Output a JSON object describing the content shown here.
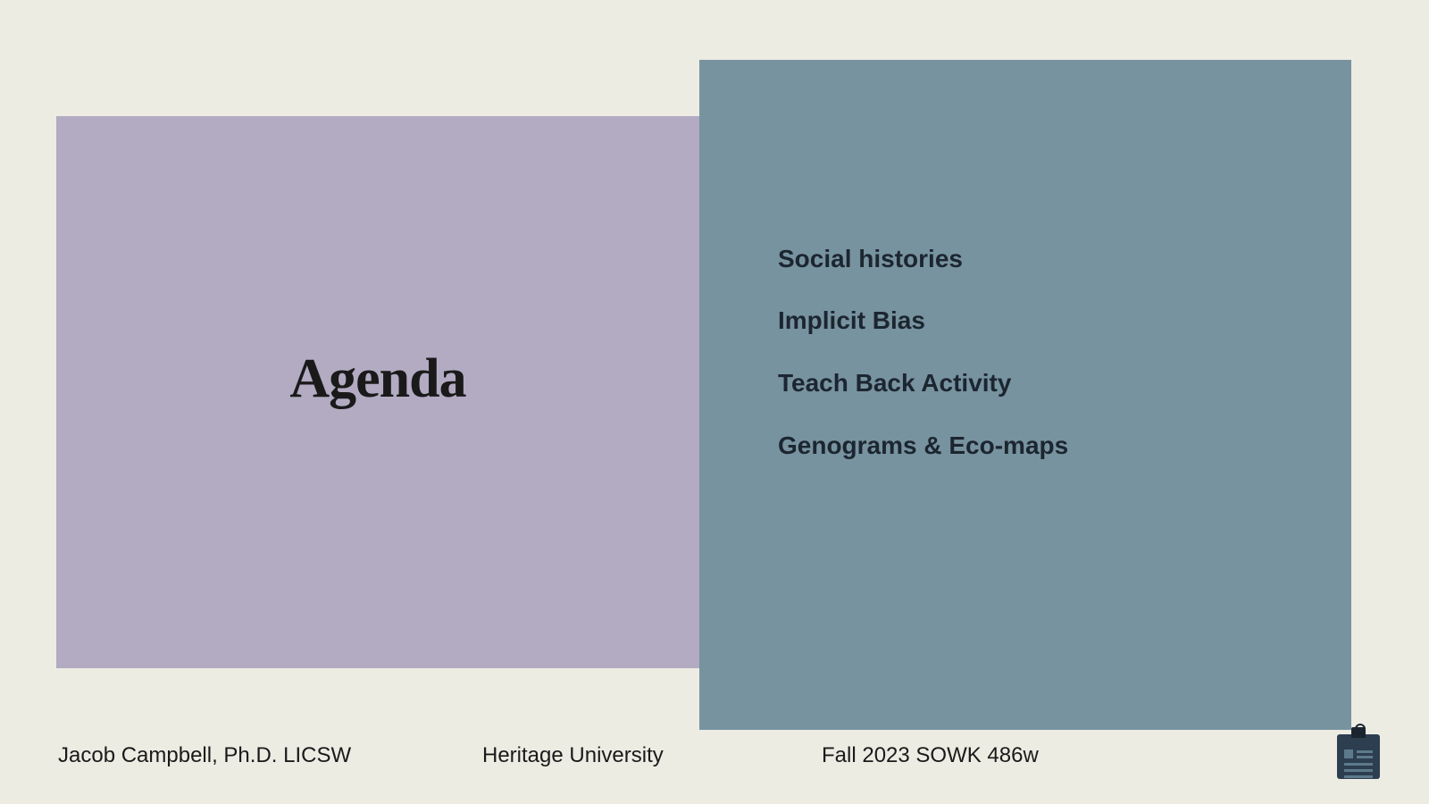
{
  "slide": {
    "title": "Agenda",
    "background_color": "#ecece3",
    "left_panel": {
      "color": "#b2abc2",
      "title_fontsize": 62,
      "title_font": "serif"
    },
    "right_panel": {
      "color": "#7893a0",
      "items": [
        "Social histories",
        "Implicit Bias",
        "Teach Back Activity",
        "Genograms & Eco-maps"
      ],
      "item_fontsize": 28,
      "item_fontweight": 700,
      "item_color": "#1c2630"
    }
  },
  "footer": {
    "author": "Jacob Campbell, Ph.D. LICSW",
    "institution": "Heritage University",
    "course": "Fall 2023 SOWK 486w",
    "fontsize": 24,
    "color": "#1a1a1a"
  },
  "icon": {
    "name": "clipboard",
    "body_color": "#2c3e50",
    "line_color": "#5d7a8c"
  }
}
